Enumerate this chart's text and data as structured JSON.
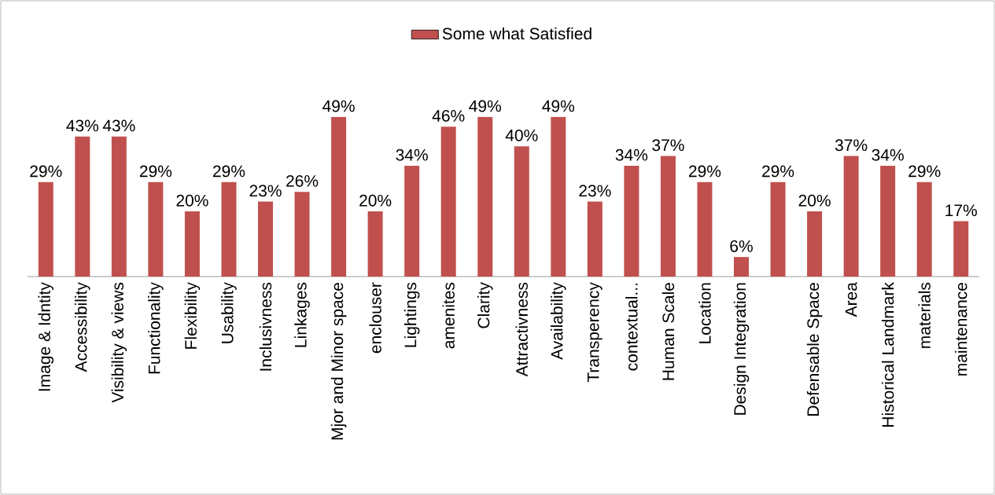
{
  "chart_data": {
    "type": "bar",
    "categories": [
      "Image & Idntity",
      "Accessibility",
      "Visibility & views",
      "Functionality",
      "Flexibility",
      "Usability",
      "Inclusivness",
      "Linkages",
      "Mjor and Minor space",
      "enclouser",
      "Lightings",
      "amenites",
      "Clarity",
      "Attractivness",
      "Availability",
      "Transperency",
      "contextual...",
      "Human Scale",
      "Location",
      "Design Integration",
      null,
      "Defensable Space",
      "Area",
      "Historical Landmark",
      "materials",
      "maintenance"
    ],
    "series": [
      {
        "name": "Some what Satisfied",
        "color": "#c0504d",
        "values": [
          29,
          43,
          43,
          29,
          20,
          29,
          23,
          26,
          49,
          20,
          34,
          46,
          49,
          40,
          49,
          23,
          34,
          37,
          29,
          6,
          29,
          20,
          37,
          34,
          29,
          17
        ],
        "value_labels": [
          "29%",
          "43%",
          "43%",
          "29%",
          "20%",
          "29%",
          "23%",
          "26%",
          "49%",
          "20%",
          "34%",
          "46%",
          "49%",
          "40%",
          "49%",
          "23%",
          "34%",
          "37%",
          "29%",
          "6%",
          "29%",
          "20%",
          "37%",
          "34%",
          "29%",
          "17%"
        ]
      }
    ],
    "legend": "top",
    "grid": false
  }
}
